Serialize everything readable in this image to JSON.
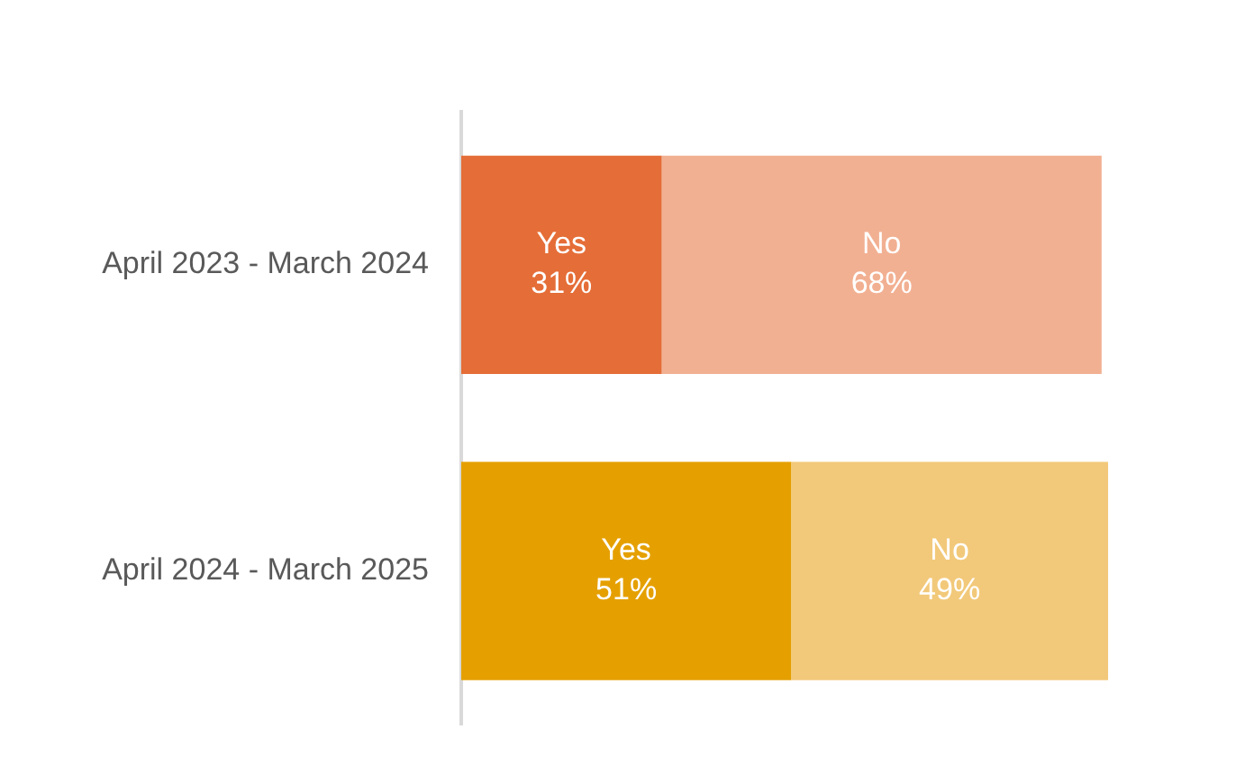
{
  "chart_data": {
    "type": "bar",
    "orientation": "horizontal",
    "stacked": true,
    "categories": [
      "April 2023 - March 2024",
      "April 2024 - March 2025"
    ],
    "xlim": [
      0,
      100
    ],
    "series": [
      {
        "name": "Yes",
        "colors": [
          "#e56d37",
          "#e5a000"
        ],
        "values": [
          31,
          51
        ],
        "value_labels": [
          "31%",
          "51%"
        ]
      },
      {
        "name": "No",
        "colors": [
          "#f2b092",
          "#f2c97a"
        ],
        "values": [
          68,
          49
        ],
        "value_labels": [
          "68%",
          "49%"
        ]
      }
    ]
  }
}
